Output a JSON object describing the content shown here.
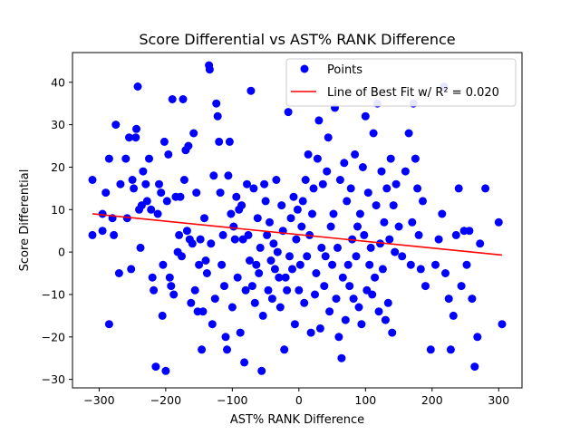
{
  "chart_data": {
    "type": "scatter",
    "title": "Score Differential vs AST% RANK Difference",
    "xlabel": "AST% RANK Difference",
    "ylabel": "Score Differential",
    "xlim": [
      -340,
      335
    ],
    "ylim": [
      -32,
      47
    ],
    "xticks": [
      -300,
      -200,
      -100,
      0,
      100,
      200,
      300
    ],
    "yticks": [
      -30,
      -20,
      -10,
      0,
      10,
      20,
      30,
      40
    ],
    "grid": false,
    "legend_position": "top-right",
    "colors": {
      "points": "#0000ff",
      "fit_line": "#ff0000"
    },
    "legend": [
      {
        "label": "Points",
        "marker": "circle"
      },
      {
        "label": "Line of Best Fit w/ R² = 0.020",
        "marker": "line"
      }
    ],
    "fit_line": {
      "r_squared": 0.02,
      "x": [
        -310,
        305
      ],
      "y": [
        9.0,
        -0.7
      ]
    },
    "series": [
      {
        "name": "Points",
        "points": [
          [
            -310,
            17
          ],
          [
            -310,
            4
          ],
          [
            -295,
            9
          ],
          [
            -295,
            5
          ],
          [
            -290,
            14
          ],
          [
            -285,
            -17
          ],
          [
            -285,
            22
          ],
          [
            -280,
            8
          ],
          [
            -278,
            4
          ],
          [
            -275,
            30
          ],
          [
            -270,
            -5
          ],
          [
            -268,
            16
          ],
          [
            -260,
            22
          ],
          [
            -258,
            8
          ],
          [
            -255,
            27
          ],
          [
            -252,
            -4
          ],
          [
            -250,
            17
          ],
          [
            -248,
            15
          ],
          [
            -245,
            27
          ],
          [
            -244,
            29
          ],
          [
            -242,
            39
          ],
          [
            -240,
            10
          ],
          [
            -238,
            1
          ],
          [
            -236,
            11
          ],
          [
            -234,
            19
          ],
          [
            -230,
            16
          ],
          [
            -228,
            12
          ],
          [
            -225,
            22
          ],
          [
            -222,
            10
          ],
          [
            -220,
            -6
          ],
          [
            -218,
            -9
          ],
          [
            -215,
            -27
          ],
          [
            -212,
            9
          ],
          [
            -210,
            16
          ],
          [
            -207,
            14
          ],
          [
            -205,
            -15
          ],
          [
            -204,
            -3
          ],
          [
            -202,
            26
          ],
          [
            -200,
            -28
          ],
          [
            -198,
            12
          ],
          [
            -196,
            23
          ],
          [
            -194,
            -6
          ],
          [
            -192,
            -8
          ],
          [
            -190,
            36
          ],
          [
            -188,
            -10
          ],
          [
            -185,
            13
          ],
          [
            -182,
            0
          ],
          [
            -180,
            4
          ],
          [
            -178,
            13
          ],
          [
            -176,
            -1
          ],
          [
            -174,
            36
          ],
          [
            -172,
            17
          ],
          [
            -170,
            24
          ],
          [
            -168,
            5
          ],
          [
            -166,
            25
          ],
          [
            -164,
            3
          ],
          [
            -162,
            -12
          ],
          [
            -160,
            2
          ],
          [
            -158,
            28
          ],
          [
            -156,
            -9
          ],
          [
            -154,
            14
          ],
          [
            -152,
            -14
          ],
          [
            -150,
            -3
          ],
          [
            -148,
            3
          ],
          [
            -146,
            -23
          ],
          [
            -144,
            -14
          ],
          [
            -142,
            8
          ],
          [
            -140,
            -2
          ],
          [
            -138,
            -5
          ],
          [
            -135,
            44
          ],
          [
            -134,
            43
          ],
          [
            -132,
            2
          ],
          [
            -130,
            -17
          ],
          [
            -128,
            18
          ],
          [
            -126,
            -11
          ],
          [
            -124,
            35
          ],
          [
            -122,
            32
          ],
          [
            -120,
            26
          ],
          [
            -118,
            14
          ],
          [
            -116,
            -3
          ],
          [
            -114,
            4
          ],
          [
            -112,
            -8
          ],
          [
            -110,
            -20
          ],
          [
            -108,
            -23
          ],
          [
            -106,
            18
          ],
          [
            -104,
            26
          ],
          [
            -102,
            9
          ],
          [
            -100,
            -13
          ],
          [
            -98,
            6
          ],
          [
            -96,
            3
          ],
          [
            -94,
            13
          ],
          [
            -92,
            -6
          ],
          [
            -90,
            10
          ],
          [
            -88,
            -19
          ],
          [
            -86,
            11
          ],
          [
            -84,
            3
          ],
          [
            -82,
            -26
          ],
          [
            -80,
            -9
          ],
          [
            -78,
            16
          ],
          [
            -76,
            4
          ],
          [
            -74,
            -2
          ],
          [
            -72,
            38
          ],
          [
            -70,
            -8
          ],
          [
            -68,
            15
          ],
          [
            -66,
            -12
          ],
          [
            -64,
            -3
          ],
          [
            -62,
            8
          ],
          [
            -60,
            -5
          ],
          [
            -58,
            1
          ],
          [
            -56,
            -28
          ],
          [
            -54,
            -15
          ],
          [
            -52,
            16
          ],
          [
            -50,
            12
          ],
          [
            -48,
            4
          ],
          [
            -46,
            -9
          ],
          [
            -44,
            7
          ],
          [
            -42,
            -2
          ],
          [
            -40,
            -11
          ],
          [
            -38,
            2
          ],
          [
            -36,
            -4
          ],
          [
            -34,
            17
          ],
          [
            -32,
            0
          ],
          [
            -30,
            -6
          ],
          [
            -28,
            -13
          ],
          [
            -26,
            11
          ],
          [
            -24,
            5
          ],
          [
            -22,
            -23
          ],
          [
            -20,
            -6
          ],
          [
            -18,
            -9
          ],
          [
            -16,
            33
          ],
          [
            -14,
            -1
          ],
          [
            -12,
            8
          ],
          [
            -10,
            -4
          ],
          [
            -8,
            13
          ],
          [
            -6,
            -17
          ],
          [
            -4,
            3
          ],
          [
            -2,
            10
          ],
          [
            0,
            -9
          ],
          [
            2,
            -3
          ],
          [
            4,
            6
          ],
          [
            6,
            12
          ],
          [
            8,
            -12
          ],
          [
            10,
            17
          ],
          [
            12,
            -1
          ],
          [
            14,
            23
          ],
          [
            16,
            4
          ],
          [
            18,
            -19
          ],
          [
            20,
            9
          ],
          [
            22,
            15
          ],
          [
            24,
            -10
          ],
          [
            26,
            -5
          ],
          [
            28,
            22
          ],
          [
            30,
            31
          ],
          [
            32,
            -18
          ],
          [
            34,
            1
          ],
          [
            36,
            16
          ],
          [
            38,
            -8
          ],
          [
            40,
            -1
          ],
          [
            42,
            19
          ],
          [
            44,
            27
          ],
          [
            46,
            -14
          ],
          [
            48,
            6
          ],
          [
            50,
            -3
          ],
          [
            52,
            9
          ],
          [
            54,
            34
          ],
          [
            56,
            -11
          ],
          [
            58,
            1
          ],
          [
            60,
            -20
          ],
          [
            62,
            17
          ],
          [
            64,
            -25
          ],
          [
            66,
            -6
          ],
          [
            68,
            21
          ],
          [
            70,
            -16
          ],
          [
            72,
            12
          ],
          [
            74,
            -3
          ],
          [
            76,
            -8
          ],
          [
            78,
            15
          ],
          [
            80,
            3
          ],
          [
            82,
            -11
          ],
          [
            84,
            23
          ],
          [
            86,
            -1
          ],
          [
            88,
            6
          ],
          [
            90,
            -13
          ],
          [
            92,
            9
          ],
          [
            94,
            -17
          ],
          [
            96,
            20
          ],
          [
            98,
            4
          ],
          [
            100,
            32
          ],
          [
            102,
            -9
          ],
          [
            104,
            14
          ],
          [
            106,
            -3
          ],
          [
            108,
            1
          ],
          [
            110,
            -10
          ],
          [
            112,
            28
          ],
          [
            114,
            -6
          ],
          [
            116,
            11
          ],
          [
            118,
            35
          ],
          [
            120,
            -14
          ],
          [
            122,
            2
          ],
          [
            124,
            19
          ],
          [
            126,
            -4
          ],
          [
            128,
            7
          ],
          [
            130,
            -16
          ],
          [
            132,
            15
          ],
          [
            134,
            -12
          ],
          [
            136,
            3
          ],
          [
            138,
            22
          ],
          [
            140,
            -19
          ],
          [
            142,
            11
          ],
          [
            144,
            0
          ],
          [
            146,
            16
          ],
          [
            150,
            6
          ],
          [
            155,
            -1
          ],
          [
            160,
            19
          ],
          [
            165,
            28
          ],
          [
            168,
            -3
          ],
          [
            170,
            7
          ],
          [
            172,
            35
          ],
          [
            175,
            22
          ],
          [
            178,
            15
          ],
          [
            180,
            4
          ],
          [
            183,
            -4
          ],
          [
            186,
            12
          ],
          [
            190,
            -8
          ],
          [
            198,
            -23
          ],
          [
            205,
            -3
          ],
          [
            210,
            3
          ],
          [
            215,
            9
          ],
          [
            218,
            39
          ],
          [
            220,
            -5
          ],
          [
            225,
            -11
          ],
          [
            228,
            -23
          ],
          [
            232,
            -15
          ],
          [
            236,
            4
          ],
          [
            240,
            15
          ],
          [
            244,
            -8
          ],
          [
            248,
            5
          ],
          [
            252,
            -3
          ],
          [
            256,
            5
          ],
          [
            260,
            -11
          ],
          [
            264,
            -27
          ],
          [
            268,
            -20
          ],
          [
            272,
            2
          ],
          [
            280,
            15
          ],
          [
            300,
            7
          ],
          [
            305,
            -17
          ]
        ]
      }
    ]
  }
}
